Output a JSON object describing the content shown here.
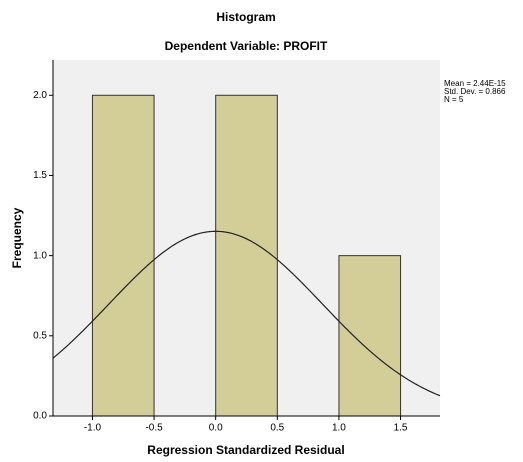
{
  "chart_data": {
    "type": "histogram",
    "title": "Histogram",
    "subtitle": "Dependent Variable: PROFIT",
    "x_label": "Regression Standardized Residual",
    "y_label": "Frequency",
    "bins": [
      -1.0,
      -0.5,
      0.0,
      0.5,
      1.0,
      1.5
    ],
    "counts": [
      2,
      0,
      2,
      0,
      1
    ],
    "color": "#d3ce98",
    "xlim": [
      -1.32,
      1.82
    ],
    "ylim": [
      0,
      2.22
    ],
    "xticks": [
      {
        "value": -1.0,
        "label": "-1.0"
      },
      -0.5,
      {
        "value": 0.0,
        "label": "0.0"
      },
      0.5,
      {
        "value": 1.0,
        "label": "1.0"
      },
      1.5
    ],
    "yticks": [
      {
        "value": 0.0,
        "label": "0.0"
      },
      0.5,
      {
        "value": 1.0,
        "label": "1.0"
      },
      1.5,
      {
        "value": 2.0,
        "label": "2.0"
      }
    ],
    "normal_curve": true,
    "stats": [
      {
        "value": 2.44e-15,
        "label": "Mean = 2.44E-15"
      },
      {
        "value": 0.866,
        "label": "Std. Dev. = 0.866"
      },
      {
        "value": 5,
        "label": "N = 5"
      }
    ]
  }
}
